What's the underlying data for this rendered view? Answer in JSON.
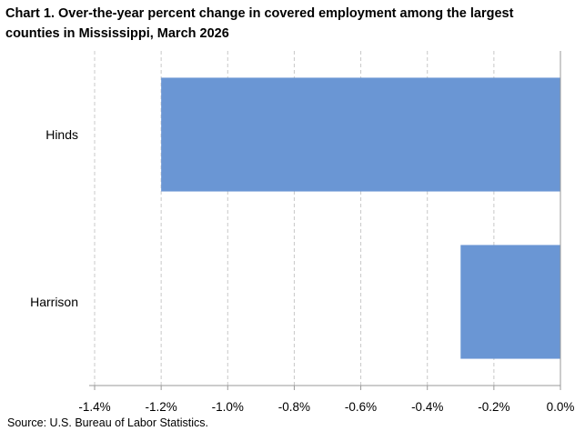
{
  "title_line1": "Chart 1. Over-the-year percent change in covered employment among the largest",
  "title_line2": "counties in Mississippi,  March 2026",
  "source": "Source: U.S. Bureau of Labor Statistics.",
  "chart_data": {
    "type": "bar",
    "orientation": "horizontal",
    "categories": [
      "Hinds",
      "Harrison"
    ],
    "values": [
      -1.2,
      -0.3
    ],
    "unit": "%",
    "xlim": [
      -1.4,
      0.0
    ],
    "xticks": [
      "-1.4%",
      "-1.2%",
      "-1.0%",
      "-0.8%",
      "-0.6%",
      "-0.4%",
      "-0.2%",
      "0.0%"
    ],
    "xtick_values": [
      -1.4,
      -1.2,
      -1.0,
      -0.8,
      -0.6,
      -0.4,
      -0.2,
      0.0
    ],
    "bar_color": "#6a96d4",
    "grid": true,
    "legend": false
  }
}
